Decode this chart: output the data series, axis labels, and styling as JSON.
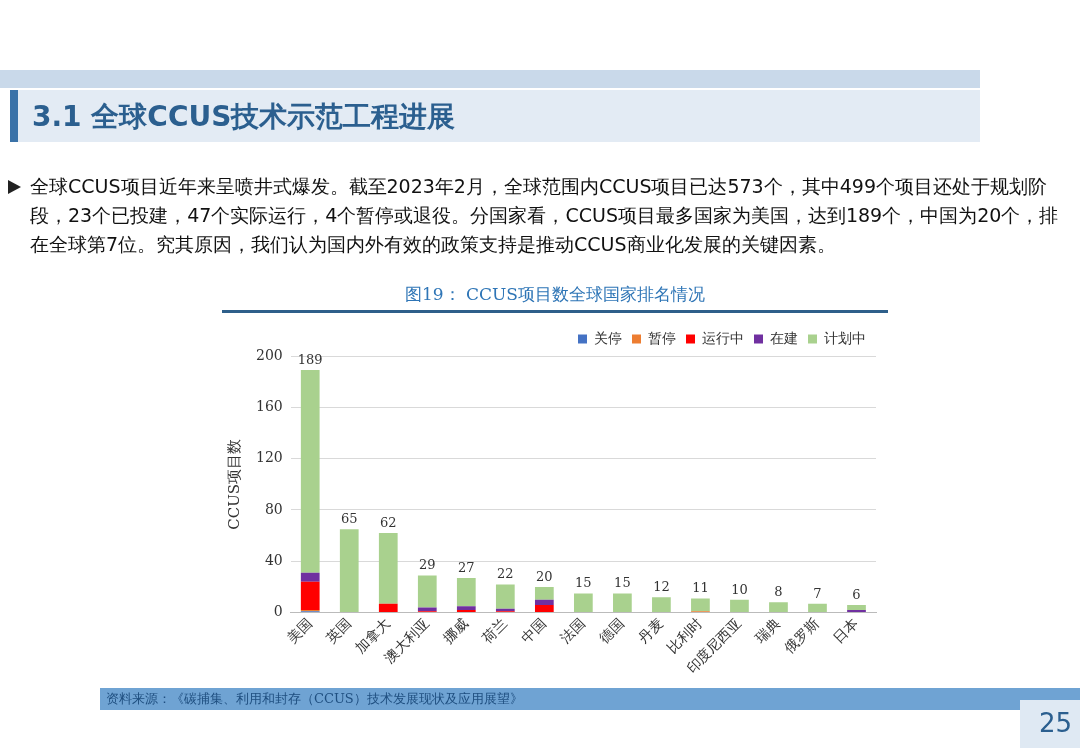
{
  "chart_data": {
    "type": "bar",
    "title": "图19： CCUS项目数全球国家排名情况",
    "ylabel": "CCUS项目数",
    "categories": [
      "美国",
      "英国",
      "加拿大",
      "澳大利亚",
      "挪威",
      "荷兰",
      "中国",
      "法国",
      "德国",
      "丹麦",
      "比利时",
      "印度尼西亚",
      "瑞典",
      "俄罗斯",
      "日本"
    ],
    "series": [
      {
        "name": "关停",
        "color": "#4472c4",
        "values": [
          1,
          0,
          0,
          0,
          0,
          0,
          0,
          0,
          0,
          0,
          0,
          0,
          0,
          0,
          0
        ]
      },
      {
        "name": "暂停",
        "color": "#ed7d31",
        "values": [
          1,
          0,
          0,
          0,
          0,
          0,
          0,
          0,
          0,
          0,
          1,
          0,
          0,
          0,
          0
        ]
      },
      {
        "name": "运行中",
        "color": "#ff0000",
        "values": [
          22,
          0,
          7,
          1,
          2,
          1,
          6,
          0,
          0,
          0,
          0,
          0,
          0,
          0,
          0
        ]
      },
      {
        "name": "在建",
        "color": "#7030a0",
        "values": [
          7,
          0,
          0,
          3,
          3,
          2,
          4,
          0,
          0,
          0,
          0,
          0,
          0,
          0,
          2
        ]
      },
      {
        "name": "计划中",
        "color": "#a9d18e",
        "values": [
          158,
          65,
          55,
          25,
          22,
          19,
          10,
          15,
          15,
          12,
          10,
          10,
          8,
          7,
          4
        ]
      }
    ],
    "stacked": true,
    "totals": [
      "189",
      "65",
      "62",
      "29",
      "27",
      "22",
      "20",
      "15",
      "15",
      "12",
      "11",
      "10",
      "8",
      "7",
      "6"
    ],
    "ylim": [
      0,
      200
    ],
    "yticks": [
      0,
      40,
      80,
      120,
      160,
      200
    ],
    "grid": "y",
    "legend": "top right",
    "annotations": [
      "3.1 全球CCUS技术示范工程进展",
      "全球CCUS项目近年来呈喷井式爆发。截至2023年2月，全球范围内CCUS项目已达573个，其中499个项目还处于规划阶段，23个已投建，47个实际运行，4个暂停或退役。分国家看，CCUS项目最多国家为美国，达到189个，中国为20个，排在全球第7位。究其原因，我们认为国内外有效的政策支持是推动CCUS商业化发展的关键因素。",
      "资料来源：《碳捕集、利用和封存（CCUS）技术发展现状及应用展望》",
      "25"
    ]
  }
}
